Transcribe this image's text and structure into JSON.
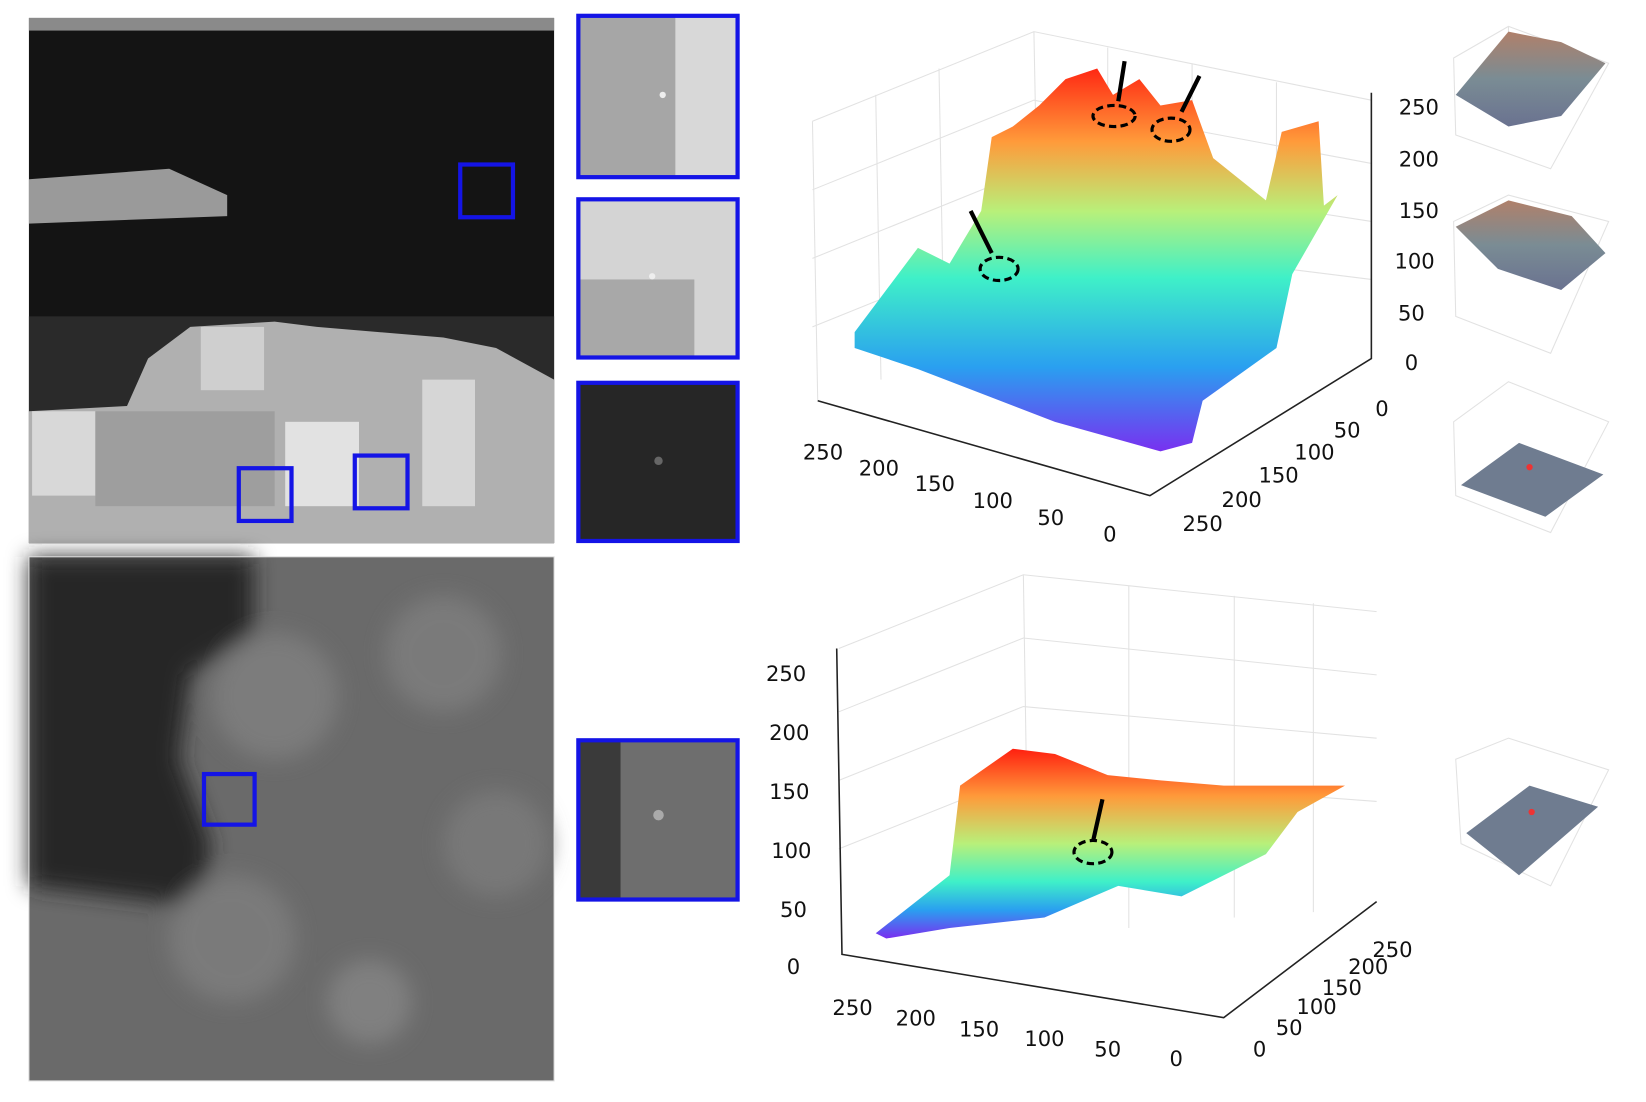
{
  "rows": [
    {
      "surface": {
        "z_ticks": [
          250,
          200,
          150,
          100,
          50,
          0
        ],
        "x_ticks": [
          250,
          200,
          150,
          100,
          50,
          0
        ],
        "y_ticks": [
          0,
          50,
          100,
          150,
          200,
          250
        ]
      }
    },
    {
      "surface": {
        "z_ticks": [
          250,
          200,
          150,
          100,
          50,
          0
        ],
        "x_ticks": [
          250,
          200,
          150,
          100,
          50,
          0
        ],
        "y_ticks": [
          0,
          50,
          100,
          150,
          200,
          250
        ]
      }
    }
  ]
}
